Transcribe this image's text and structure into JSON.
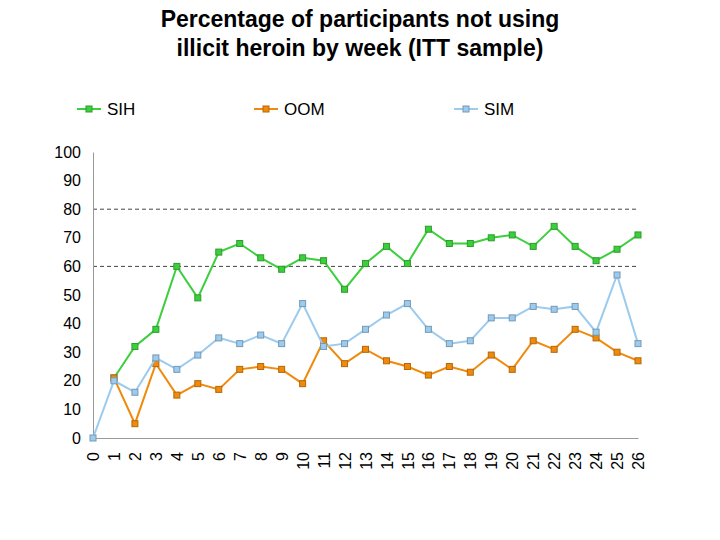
{
  "chart_data": {
    "type": "line",
    "title": "Percentage of participants not using illicit heroin by week (ITT sample)",
    "x": [
      0,
      1,
      2,
      3,
      4,
      5,
      6,
      7,
      8,
      9,
      10,
      11,
      12,
      13,
      14,
      15,
      16,
      17,
      18,
      19,
      20,
      21,
      22,
      23,
      24,
      25,
      26
    ],
    "xlim": [
      0,
      26
    ],
    "xticks": [
      0,
      1,
      2,
      3,
      4,
      5,
      6,
      7,
      8,
      9,
      10,
      11,
      12,
      13,
      14,
      15,
      16,
      17,
      18,
      19,
      20,
      21,
      22,
      23,
      24,
      25,
      26
    ],
    "ylim": [
      0,
      100
    ],
    "yticks": [
      0,
      10,
      20,
      30,
      40,
      50,
      60,
      70,
      80,
      90,
      100
    ],
    "reference_lines": [
      60,
      80
    ],
    "grid": false,
    "legend": "top",
    "marker": "square",
    "line_style": "solid",
    "series": [
      {
        "name": "SIH",
        "color": "#3ccf3c",
        "values": [
          null,
          21,
          32,
          38,
          60,
          49,
          65,
          68,
          63,
          59,
          63,
          62,
          52,
          61,
          67,
          61,
          73,
          68,
          68,
          70,
          71,
          67,
          74,
          67,
          62,
          66,
          71
        ]
      },
      {
        "name": "OOM",
        "color": "#f08a0c",
        "values": [
          null,
          21,
          5,
          26,
          15,
          19,
          17,
          24,
          25,
          24,
          19,
          34,
          26,
          31,
          27,
          25,
          22,
          25,
          23,
          29,
          24,
          34,
          31,
          38,
          35,
          30,
          27
        ]
      },
      {
        "name": "SIM",
        "color": "#9ccbee",
        "values": [
          0,
          20,
          16,
          28,
          24,
          29,
          35,
          33,
          36,
          33,
          47,
          32,
          33,
          38,
          43,
          47,
          38,
          33,
          34,
          42,
          42,
          46,
          45,
          46,
          37,
          57,
          33
        ]
      }
    ]
  }
}
